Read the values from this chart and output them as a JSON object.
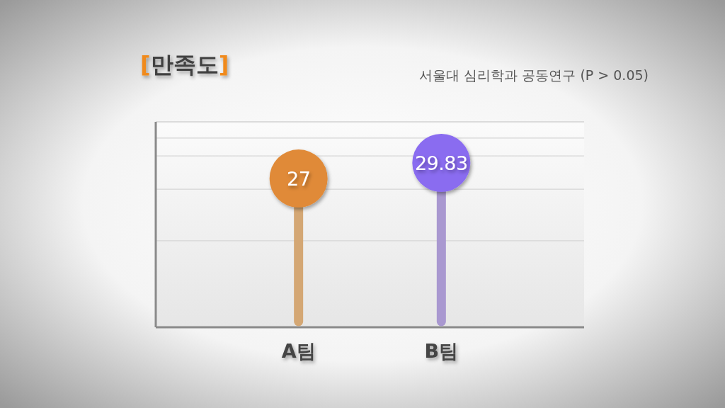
{
  "chart_data": {
    "type": "lollipop",
    "title": "[만족도]",
    "annotations": [
      "서울대 심리학과 공동연구 (P > 0.05)"
    ],
    "categories": [
      "A팀",
      "B팀"
    ],
    "values": [
      27,
      29.83
    ],
    "colors": [
      "#e08a38",
      "#8a6cf0"
    ],
    "data_labels": true
  }
}
